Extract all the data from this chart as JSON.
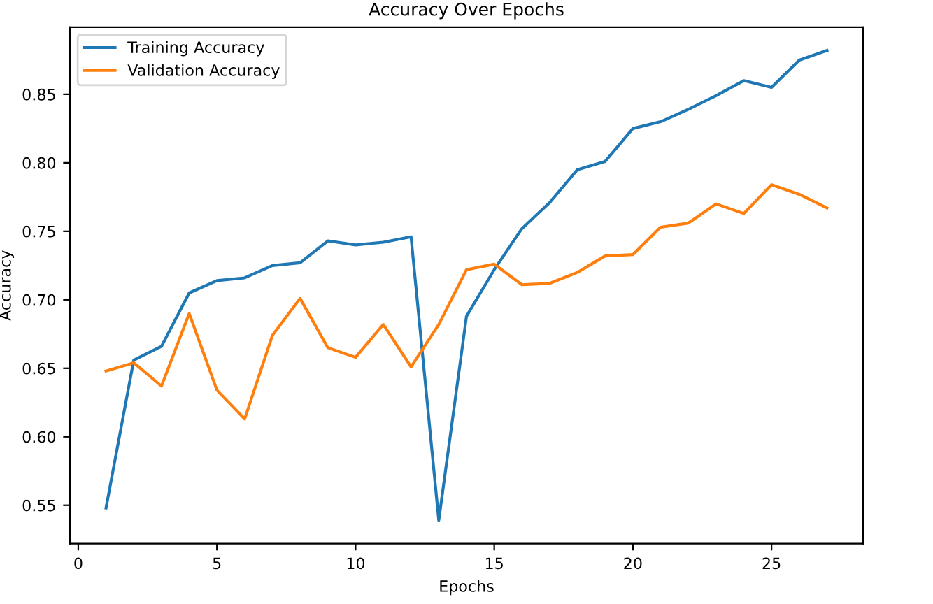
{
  "chart_data": {
    "type": "line",
    "title": "Accuracy Over Epochs",
    "xlabel": "Epochs",
    "ylabel": "Accuracy",
    "x": [
      1,
      2,
      3,
      4,
      5,
      6,
      7,
      8,
      9,
      10,
      11,
      12,
      13,
      14,
      15,
      16,
      17,
      18,
      19,
      20,
      21,
      22,
      23,
      24,
      25,
      26,
      27
    ],
    "series": [
      {
        "name": "Training Accuracy",
        "color": "#1f77b4",
        "values": [
          0.548,
          0.656,
          0.666,
          0.705,
          0.714,
          0.716,
          0.725,
          0.727,
          0.743,
          0.74,
          0.742,
          0.746,
          0.539,
          0.688,
          0.722,
          0.752,
          0.771,
          0.795,
          0.801,
          0.825,
          0.83,
          0.839,
          0.849,
          0.86,
          0.855,
          0.875,
          0.882
        ]
      },
      {
        "name": "Validation Accuracy",
        "color": "#ff7f0e",
        "values": [
          0.648,
          0.654,
          0.637,
          0.69,
          0.634,
          0.613,
          0.674,
          0.701,
          0.665,
          0.658,
          0.682,
          0.651,
          0.682,
          0.722,
          0.726,
          0.711,
          0.712,
          0.72,
          0.732,
          0.733,
          0.753,
          0.756,
          0.77,
          0.763,
          0.784,
          0.777,
          0.767
        ]
      }
    ],
    "xlim": [
      -0.3,
      28.3
    ],
    "xticks": [
      0,
      5,
      10,
      15,
      20,
      25
    ],
    "ylim": [
      0.522,
      0.899
    ],
    "yticks": [
      0.55,
      {
        "value": 0.6,
        "label": "0.60"
      },
      0.65,
      {
        "value": 0.7,
        "label": "0.70"
      },
      0.75,
      {
        "value": 0.8,
        "label": "0.80"
      },
      0.85
    ],
    "legend": "top left",
    "grid": false
  }
}
